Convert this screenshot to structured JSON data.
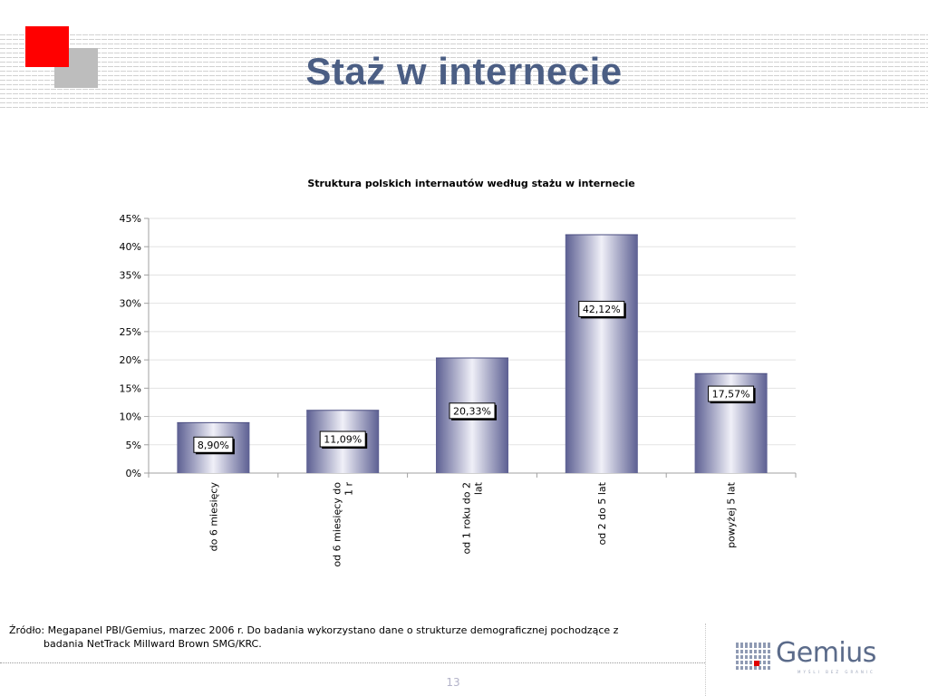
{
  "slide": {
    "title": "Staż w internecie",
    "source_line1": "Źródło: Megapanel PBI/Gemius, marzec 2006 r. Do badania wykorzystano dane o strukturze demograficznej pochodzące z",
    "source_line2": "badania NetTrack Millward Brown SMG/KRC.",
    "page_number": "13",
    "brand": "Gemius",
    "brand_tagline": "MYŚLI BEZ GRANIC"
  },
  "colors": {
    "title": "#4b5e84",
    "red_square": "#ff0000",
    "gray_square": "#bdbdbd",
    "bar_edge": "#5c5f92",
    "bar_center": "#f0f0f8"
  },
  "chart_data": {
    "type": "bar",
    "title": "Struktura polskich internautów według stażu w internecie",
    "categories": [
      [
        "do 6 miesięcy"
      ],
      [
        "od 6 miesięcy do",
        "1 r"
      ],
      [
        "od 1 roku do 2",
        "lat"
      ],
      [
        "od 2 do 5 lat"
      ],
      [
        "powyżej 5 lat"
      ]
    ],
    "values": [
      8.9,
      11.09,
      20.33,
      42.12,
      17.57
    ],
    "data_labels": [
      "8,90%",
      "11,09%",
      "20,33%",
      "42,12%",
      "17,57%"
    ],
    "label_values": [
      5,
      6,
      11,
      29,
      14
    ],
    "y_ticks": [
      0,
      5,
      10,
      15,
      20,
      25,
      30,
      35,
      40,
      45
    ],
    "y_tick_labels": [
      "0%",
      "5%",
      "10%",
      "15%",
      "20%",
      "25%",
      "30%",
      "35%",
      "40%",
      "45%"
    ],
    "ylim": [
      0,
      45
    ],
    "grid": true,
    "legend": "none"
  }
}
